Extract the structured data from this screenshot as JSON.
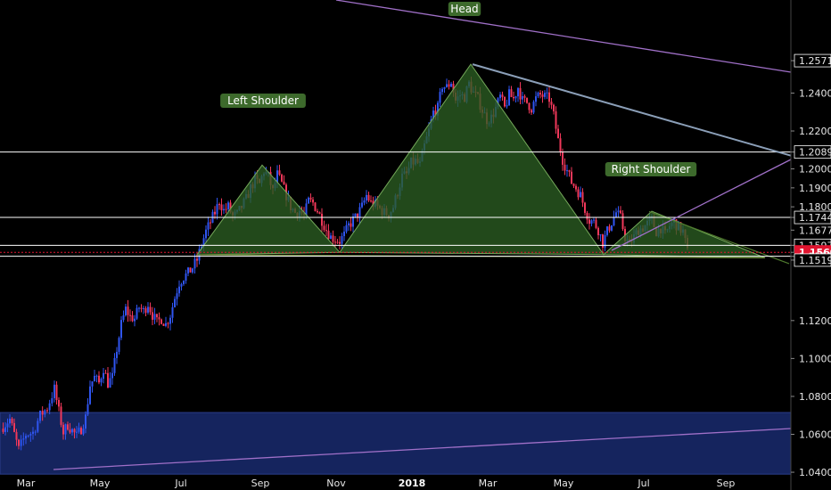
{
  "chart_data": {
    "type": "candlestick",
    "instrument_note": "",
    "colors": {
      "up": "#2f55f0",
      "down": "#f0385a",
      "pattern_fill": "#2b5d22",
      "pattern_stroke": "#74a85a",
      "support_fill": "#15245e",
      "resistance_line": "#a070c8",
      "trend_line": "#8b9fb8",
      "current_price_bg": "#e0142f"
    },
    "y_axis": {
      "range": [
        1.035,
        1.265
      ],
      "ticks": [
        "1.2571",
        "1.2400",
        "1.2200",
        "1.2089",
        "1.2000",
        "1.1900",
        "1.1800",
        "1.1744",
        "1.1677",
        "1.1597",
        "1.1560",
        "1.1539",
        "1.1519",
        "1.1200",
        "1.1000",
        "1.0800",
        "1.0600",
        "1.0400"
      ]
    },
    "x_axis": {
      "labels": [
        "Mar",
        "May",
        "Jul",
        "Sep",
        "Nov",
        "2018",
        "Mar",
        "May",
        "Jul",
        "Sep"
      ]
    },
    "horizontal_levels": [
      1.2089,
      1.1744,
      1.1597,
      1.1539
    ],
    "current_price": 1.156,
    "support_zone": [
      1.039,
      1.0715
    ],
    "annotations": [
      "Left Shoulder",
      "Head",
      "Right Shoulder"
    ],
    "closes_outline": [
      [
        1,
        1.063
      ],
      [
        11,
        1.068
      ],
      [
        21,
        1.052
      ],
      [
        29,
        1.06
      ],
      [
        37,
        1.061
      ],
      [
        45,
        1.07
      ],
      [
        53,
        1.074
      ],
      [
        61,
        1.084
      ],
      [
        66,
        1.072
      ],
      [
        71,
        1.061
      ],
      [
        76,
        1.065
      ],
      [
        81,
        1.062
      ],
      [
        86,
        1.059
      ],
      [
        91,
        1.063
      ],
      [
        96,
        1.069
      ],
      [
        101,
        1.086
      ],
      [
        106,
        1.09
      ],
      [
        111,
        1.087
      ],
      [
        116,
        1.095
      ],
      [
        121,
        1.087
      ],
      [
        126,
        1.09
      ],
      [
        131,
        1.105
      ],
      [
        136,
        1.118
      ],
      [
        141,
        1.126
      ],
      [
        146,
        1.122
      ],
      [
        151,
        1.121
      ],
      [
        156,
        1.127
      ],
      [
        161,
        1.125
      ],
      [
        166,
        1.129
      ],
      [
        171,
        1.123
      ],
      [
        176,
        1.119
      ],
      [
        181,
        1.121
      ],
      [
        186,
        1.118
      ],
      [
        191,
        1.123
      ],
      [
        196,
        1.132
      ],
      [
        201,
        1.14
      ],
      [
        206,
        1.143
      ],
      [
        211,
        1.145
      ],
      [
        216,
        1.148
      ],
      [
        221,
        1.152
      ],
      [
        226,
        1.16
      ],
      [
        231,
        1.167
      ],
      [
        236,
        1.172
      ],
      [
        241,
        1.177
      ],
      [
        246,
        1.183
      ],
      [
        251,
        1.178
      ],
      [
        256,
        1.18
      ],
      [
        261,
        1.175
      ],
      [
        266,
        1.176
      ],
      [
        271,
        1.18
      ],
      [
        276,
        1.184
      ],
      [
        281,
        1.19
      ],
      [
        286,
        1.194
      ],
      [
        291,
        1.192
      ],
      [
        296,
        1.199
      ],
      [
        301,
        1.196
      ],
      [
        306,
        1.188
      ],
      [
        311,
        1.197
      ],
      [
        316,
        1.192
      ],
      [
        321,
        1.186
      ],
      [
        326,
        1.18
      ],
      [
        331,
        1.177
      ],
      [
        336,
        1.178
      ],
      [
        341,
        1.175
      ],
      [
        346,
        1.183
      ],
      [
        351,
        1.182
      ],
      [
        356,
        1.178
      ],
      [
        361,
        1.173
      ],
      [
        366,
        1.168
      ],
      [
        371,
        1.164
      ],
      [
        376,
        1.163
      ],
      [
        381,
        1.162
      ],
      [
        386,
        1.165
      ],
      [
        391,
        1.17
      ],
      [
        396,
        1.173
      ],
      [
        401,
        1.176
      ],
      [
        406,
        1.18
      ],
      [
        411,
        1.186
      ],
      [
        416,
        1.182
      ],
      [
        421,
        1.181
      ],
      [
        426,
        1.179
      ],
      [
        431,
        1.177
      ],
      [
        436,
        1.176
      ],
      [
        441,
        1.18
      ],
      [
        446,
        1.188
      ],
      [
        451,
        1.196
      ],
      [
        456,
        1.197
      ],
      [
        461,
        1.203
      ],
      [
        466,
        1.204
      ],
      [
        471,
        1.202
      ],
      [
        476,
        1.212
      ],
      [
        481,
        1.22
      ],
      [
        486,
        1.23
      ],
      [
        491,
        1.232
      ],
      [
        496,
        1.244
      ],
      [
        501,
        1.243
      ],
      [
        506,
        1.246
      ],
      [
        511,
        1.236
      ],
      [
        516,
        1.239
      ],
      [
        521,
        1.238
      ],
      [
        526,
        1.245
      ],
      [
        531,
        1.24
      ],
      [
        536,
        1.237
      ],
      [
        541,
        1.231
      ],
      [
        546,
        1.226
      ],
      [
        551,
        1.227
      ],
      [
        556,
        1.232
      ],
      [
        561,
        1.238
      ],
      [
        566,
        1.232
      ],
      [
        571,
        1.239
      ],
      [
        576,
        1.237
      ],
      [
        581,
        1.243
      ],
      [
        586,
        1.236
      ],
      [
        591,
        1.235
      ],
      [
        596,
        1.232
      ],
      [
        601,
        1.237
      ],
      [
        606,
        1.239
      ],
      [
        611,
        1.238
      ],
      [
        616,
        1.237
      ],
      [
        621,
        1.228
      ],
      [
        626,
        1.215
      ],
      [
        631,
        1.205
      ],
      [
        636,
        1.199
      ],
      [
        641,
        1.193
      ],
      [
        646,
        1.19
      ],
      [
        651,
        1.186
      ],
      [
        656,
        1.179
      ],
      [
        661,
        1.173
      ],
      [
        666,
        1.172
      ],
      [
        671,
        1.168
      ],
      [
        676,
        1.161
      ],
      [
        681,
        1.167
      ],
      [
        686,
        1.172
      ],
      [
        691,
        1.177
      ],
      [
        696,
        1.174
      ],
      [
        701,
        1.164
      ],
      [
        706,
        1.16
      ],
      [
        711,
        1.164
      ],
      [
        716,
        1.168
      ],
      [
        721,
        1.169
      ],
      [
        726,
        1.171
      ],
      [
        731,
        1.173
      ],
      [
        736,
        1.167
      ],
      [
        741,
        1.169
      ],
      [
        746,
        1.165
      ],
      [
        751,
        1.17
      ],
      [
        756,
        1.172
      ],
      [
        761,
        1.169
      ],
      [
        766,
        1.167
      ],
      [
        771,
        1.156
      ]
    ]
  }
}
